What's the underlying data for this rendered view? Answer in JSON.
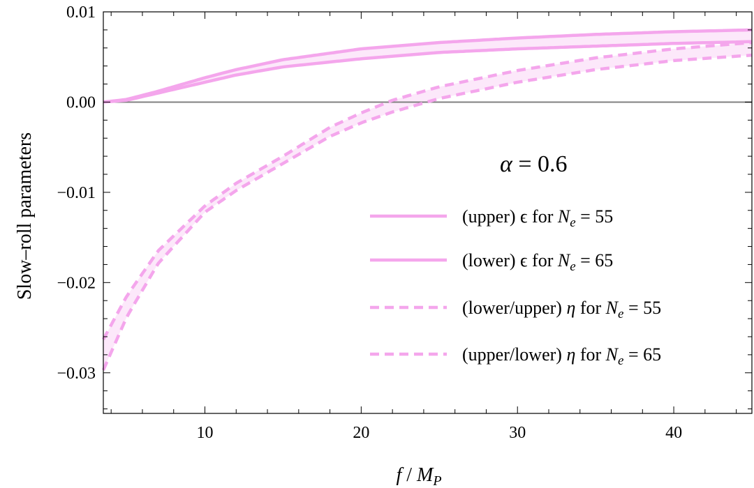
{
  "chart_data": {
    "type": "line",
    "title": "",
    "xlabel": "f / M_P",
    "ylabel": "Slow–roll  parameters",
    "xlim": [
      3.5,
      45
    ],
    "ylim": [
      -0.0345,
      0.01
    ],
    "xticks": [
      10,
      20,
      30,
      40
    ],
    "yticks": [
      0.01,
      0.0,
      -0.01,
      -0.02,
      -0.03
    ],
    "xtick_labels": [
      "10",
      "20",
      "30",
      "40"
    ],
    "ytick_labels": [
      "0.01",
      "0.00",
      "−0.01",
      "−0.02",
      "−0.03"
    ],
    "grid": false,
    "legend_position": "lower-right",
    "annotation": "α = 0.6",
    "series_color": "#f4a6ec",
    "band_color": "#fce8fa",
    "series": [
      {
        "name": "(upper) ϵ for N_e = 55",
        "style": "solid",
        "x": [
          3.5,
          5,
          7,
          10,
          12,
          15,
          20,
          25,
          30,
          35,
          40,
          45
        ],
        "y": [
          0.0,
          0.0003,
          0.0012,
          0.0027,
          0.0036,
          0.0047,
          0.0059,
          0.0066,
          0.0071,
          0.0075,
          0.0078,
          0.008
        ]
      },
      {
        "name": "(lower) ϵ for N_e = 65",
        "style": "solid",
        "x": [
          3.5,
          5,
          7,
          10,
          12,
          15,
          20,
          25,
          30,
          35,
          40,
          45
        ],
        "y": [
          0.0,
          0.0002,
          0.001,
          0.0022,
          0.003,
          0.0039,
          0.0048,
          0.0055,
          0.0059,
          0.0062,
          0.0065,
          0.0067
        ]
      },
      {
        "name": "(lower/upper) η for N_e = 55",
        "style": "dashed",
        "x": [
          3.5,
          5,
          7,
          10,
          12,
          15,
          18,
          20,
          22,
          25,
          30,
          35,
          40,
          45
        ],
        "y": [
          -0.0263,
          -0.0215,
          -0.0165,
          -0.0115,
          -0.009,
          -0.006,
          -0.0028,
          -0.0012,
          0.0002,
          0.0017,
          0.0035,
          0.0049,
          0.0059,
          0.0066
        ]
      },
      {
        "name": "(upper/lower) η for N_e = 65",
        "style": "dashed",
        "x": [
          3.5,
          5,
          7,
          10,
          12,
          15,
          18,
          20,
          22,
          25,
          30,
          35,
          40,
          45
        ],
        "y": [
          -0.0297,
          -0.0238,
          -0.0179,
          -0.0122,
          -0.0098,
          -0.0068,
          -0.0038,
          -0.0023,
          -0.0011,
          0.0004,
          0.0022,
          0.0036,
          0.0046,
          0.0052
        ]
      }
    ]
  },
  "legend": [
    {
      "prefix": "(upper) ϵ for ",
      "sym": "N",
      "sub": "e",
      "suffix": " = 55"
    },
    {
      "prefix": "(lower) ϵ for ",
      "sym": "N",
      "sub": "e",
      "suffix": " = 65"
    },
    {
      "prefix": "(lower/upper) ",
      "greek": "η",
      "mid": " for ",
      "sym": "N",
      "sub": "e",
      "suffix": " = 55"
    },
    {
      "prefix": "(upper/lower) ",
      "greek": "η",
      "mid": " for ",
      "sym": "N",
      "sub": "e",
      "suffix": " = 65"
    }
  ],
  "axis_title_parts": {
    "x_f": "f",
    "x_sep": " / ",
    "x_M": "M",
    "x_sub": "P",
    "annot_alpha": "α",
    "annot_value": " = 0.6"
  }
}
